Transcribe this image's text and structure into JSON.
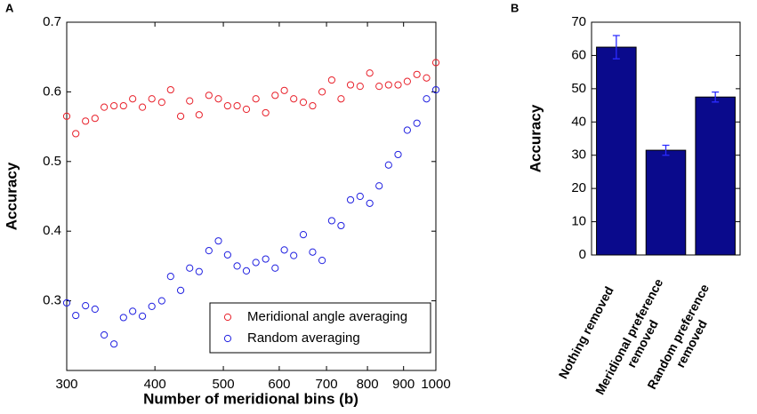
{
  "chart_data": [
    {
      "type": "scatter",
      "panel_label": "A",
      "x_label": "Number of meridional bins (b)",
      "y_label": "Accuracy",
      "x": [
        300,
        309,
        319,
        329,
        339,
        350,
        361,
        372,
        384,
        396,
        409,
        421,
        435,
        448,
        462,
        477,
        492,
        507,
        523,
        539,
        556,
        574,
        592,
        610,
        629,
        649,
        669,
        690,
        712,
        734,
        757,
        781,
        806,
        831,
        857,
        884,
        911,
        940,
        970,
        1000
      ],
      "series": [
        {
          "name": "Meridional angle averaging",
          "color": "#e8202a",
          "values": [
            0.565,
            0.54,
            0.558,
            0.562,
            0.578,
            0.58,
            0.58,
            0.59,
            0.578,
            0.59,
            0.585,
            0.603,
            0.565,
            0.587,
            0.567,
            0.595,
            0.59,
            0.58,
            0.58,
            0.575,
            0.59,
            0.57,
            0.595,
            0.602,
            0.59,
            0.585,
            0.58,
            0.6,
            0.617,
            0.59,
            0.61,
            0.608,
            0.627,
            0.608,
            0.61,
            0.61,
            0.615,
            0.625,
            0.62,
            0.642
          ]
        },
        {
          "name": "Random averaging",
          "color": "#2020e0",
          "values": [
            0.297,
            0.279,
            0.293,
            0.288,
            0.251,
            0.238,
            0.276,
            0.285,
            0.278,
            0.292,
            0.3,
            0.335,
            0.315,
            0.347,
            0.342,
            0.372,
            0.386,
            0.366,
            0.35,
            0.343,
            0.355,
            0.36,
            0.347,
            0.373,
            0.365,
            0.395,
            0.37,
            0.358,
            0.415,
            0.408,
            0.445,
            0.45,
            0.44,
            0.465,
            0.495,
            0.51,
            0.545,
            0.555,
            0.59,
            0.603
          ]
        }
      ],
      "xscale": "log",
      "xlim": [
        300,
        1000
      ],
      "xticks": [
        300,
        400,
        500,
        600,
        700,
        800,
        900,
        1000
      ],
      "ylim": [
        0.2,
        0.7
      ],
      "yticks": [
        0.3,
        0.4,
        0.5,
        0.6,
        0.7
      ],
      "legend": "lower right"
    },
    {
      "type": "bar",
      "panel_label": "B",
      "y_label": "Accuracy",
      "categories": [
        "Nothing removed",
        "Meridional preference removed",
        "Random preference removed"
      ],
      "values": [
        62.5,
        31.5,
        47.5
      ],
      "errors": [
        3.5,
        1.5,
        1.5
      ],
      "color": "#0a0a8c",
      "error_color": "#2a2aff",
      "ylim": [
        0,
        70
      ],
      "yticks": [
        0,
        10,
        20,
        30,
        40,
        50,
        60,
        70
      ]
    }
  ]
}
